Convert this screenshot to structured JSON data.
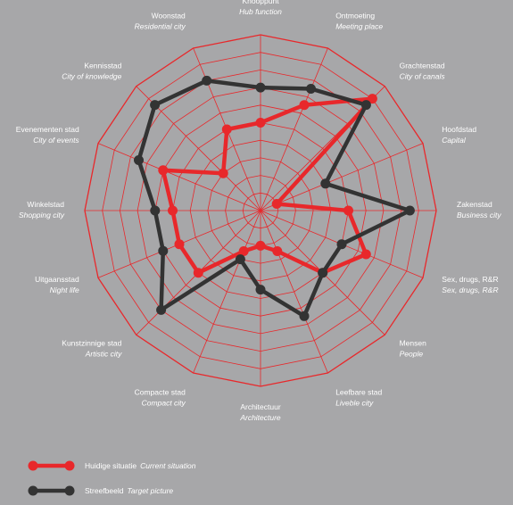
{
  "chart_data": {
    "type": "radar",
    "scale": {
      "min": 0,
      "max": 10,
      "rings": 10
    },
    "axes": [
      {
        "main": "Knooppunt",
        "sub": "Hub function"
      },
      {
        "main": "Ontmoeting",
        "sub": "Meeting place"
      },
      {
        "main": "Grachtenstad",
        "sub": "City of canals"
      },
      {
        "main": "Hoofdstad",
        "sub": "Capital"
      },
      {
        "main": "Zakenstad",
        "sub": "Business city"
      },
      {
        "main": "Sex, drugs, R&R",
        "sub": "Sex, drugs, R&R"
      },
      {
        "main": "Mensen",
        "sub": "People"
      },
      {
        "main": "Leefbare stad",
        "sub": "Liveble city"
      },
      {
        "main": "Architectuur",
        "sub": "Architecture"
      },
      {
        "main": "Compacte stad",
        "sub": "Compact city"
      },
      {
        "main": "Kunstzinnige stad",
        "sub": "Artistic city"
      },
      {
        "main": "Uitgaansstad",
        "sub": "Night life"
      },
      {
        "main": "Winkelstad",
        "sub": "Shopping city"
      },
      {
        "main": "Evenementen stad",
        "sub": "City of events"
      },
      {
        "main": "Kennisstad",
        "sub": "City of knowledge"
      },
      {
        "main": "Woonstad",
        "sub": "Residential city"
      }
    ],
    "series": [
      {
        "name": "Huidige situatie",
        "name_sub": "Current situation",
        "color": "#e8282b",
        "values": [
          5,
          6.5,
          9,
          1,
          5,
          6.5,
          5,
          2.5,
          2,
          2.5,
          5,
          5,
          5,
          6,
          3,
          5
        ]
      },
      {
        "name": "Streefbeeld",
        "name_sub": "Target picture",
        "color": "#333333",
        "values": [
          7,
          7.5,
          8.5,
          4,
          8.5,
          5,
          5,
          6.5,
          4.5,
          3,
          8,
          6,
          6,
          7.5,
          8.5,
          8
        ]
      }
    ]
  }
}
